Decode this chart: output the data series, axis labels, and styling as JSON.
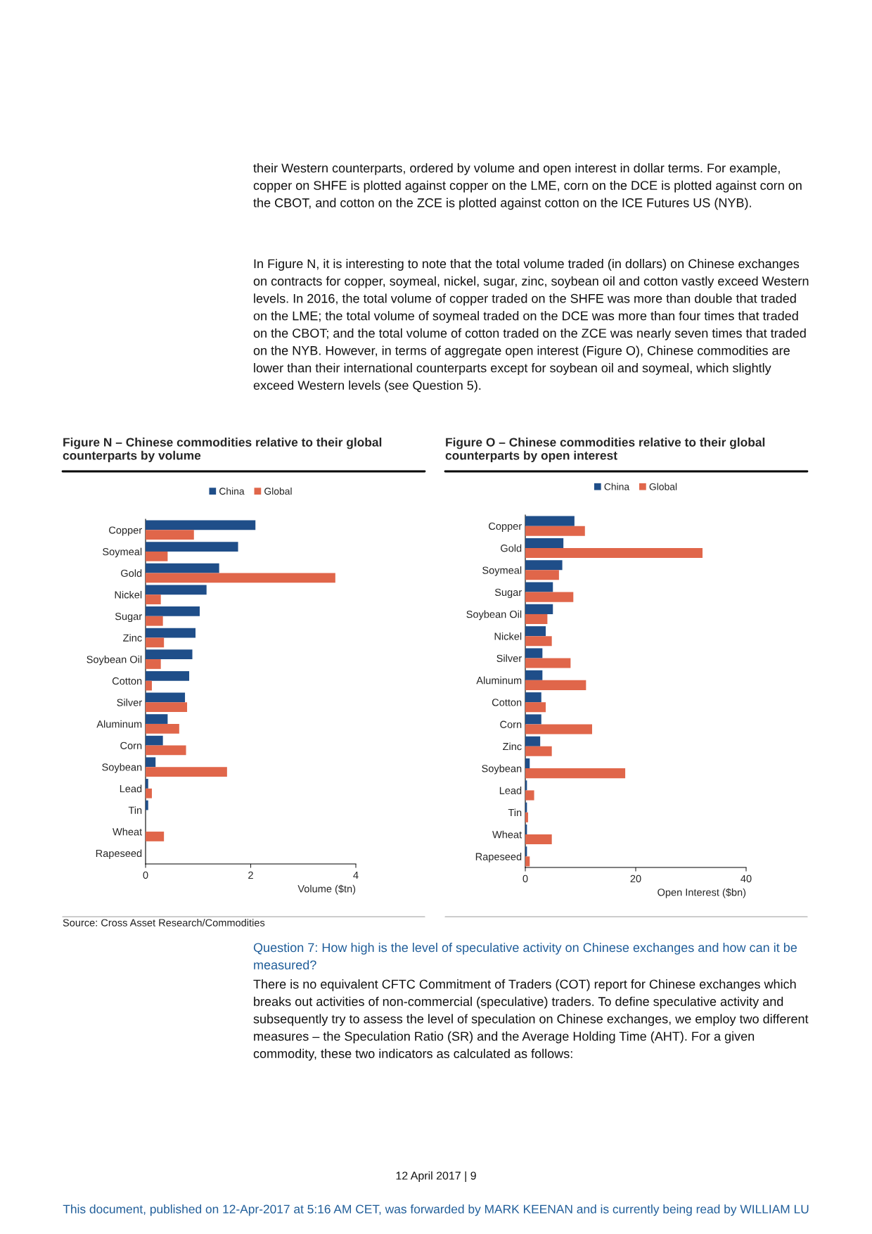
{
  "chart_data": [
    {
      "type": "bar",
      "orientation": "horizontal",
      "title": "Figure N – Chinese commodities relative to their global counterparts by volume",
      "xlabel": "Volume ($tn)",
      "categories": [
        "Copper",
        "Soymeal",
        "Gold",
        "Nickel",
        "Sugar",
        "Zinc",
        "Soybean Oil",
        "Cotton",
        "Silver",
        "Aluminum",
        "Corn",
        "Soybean",
        "Lead",
        "Tin",
        "Wheat",
        "Rapeseed"
      ],
      "series": [
        {
          "name": "China",
          "color": "#1f4e89",
          "values": [
            2.09,
            1.76,
            1.4,
            1.16,
            1.03,
            0.95,
            0.89,
            0.83,
            0.75,
            0.42,
            0.33,
            0.19,
            0.05,
            0.05,
            0,
            0
          ]
        },
        {
          "name": "Global",
          "color": "#e0664a",
          "values": [
            0.92,
            0.42,
            3.61,
            0.29,
            0.33,
            0.35,
            0.29,
            0.12,
            0.79,
            0.64,
            0.77,
            1.55,
            0.12,
            0,
            0.35,
            0
          ]
        }
      ],
      "xlim": [
        0,
        4
      ],
      "xticks": [
        0,
        2,
        4
      ],
      "legend": "top",
      "grid": false,
      "annotations": [
        "their Western counterparts, ordered by volume and open interest in dollar terms. For example, copper on SHFE is plotted against copper on the LME, corn on the DCE is plotted against corn on the CBOT, and cotton on the ZCE is plotted against cotton on the ICE Futures US (NYB).",
        "In Figure N, it is interesting to note that the total volume traded (in dollars) on Chinese exchanges on contracts for copper, soymeal, nickel, sugar, zinc, soybean oil and cotton vastly exceed Western levels. In 2016, the total volume of copper traded on the SHFE was more than double that traded on the LME; the total volume of soymeal traded on the DCE was more than four times that traded on the CBOT; and the total volume of cotton traded on the ZCE was nearly seven times that traded on the NYB. However, in terms of aggregate open interest (Figure O), Chinese commodities are lower than their international counterparts except for soybean oil and soymeal, which slightly exceed Western levels (see Question 5).",
        "Source: Cross Asset Research/Commodities"
      ]
    },
    {
      "type": "bar",
      "orientation": "horizontal",
      "title": "Figure O – Chinese commodities relative to their global counterparts by open interest",
      "xlabel": "Open Interest ($bn)",
      "categories": [
        "Copper",
        "Gold",
        "Soymeal",
        "Sugar",
        "Soybean Oil",
        "Nickel",
        "Silver",
        "Aluminum",
        "Cotton",
        "Corn",
        "Zinc",
        "Soybean",
        "Lead",
        "Tin",
        "Wheat",
        "Rapeseed"
      ],
      "series": [
        {
          "name": "China",
          "color": "#1f4e89",
          "values": [
            8.9,
            6.9,
            6.7,
            5.0,
            5.0,
            3.7,
            3.1,
            3.1,
            2.9,
            2.9,
            2.7,
            0.8,
            0.3,
            0.3,
            0.3,
            0.3
          ]
        },
        {
          "name": "Global",
          "color": "#e0664a",
          "values": [
            10.8,
            32.1,
            6.1,
            8.7,
            4.0,
            4.8,
            8.2,
            11.0,
            3.7,
            12.1,
            4.8,
            18.1,
            1.6,
            0.5,
            4.8,
            0.8
          ]
        }
      ],
      "xlim": [
        0,
        40
      ],
      "xticks": [
        0,
        20,
        40
      ],
      "legend": "top",
      "grid": false,
      "annotations": [
        "Question 7: How high is the level of speculative activity on Chinese exchanges and how can it be measured?",
        "There is no equivalent CFTC Commitment of Traders (COT) report for Chinese exchanges which breaks out activities of non-commercial (speculative) traders. To define speculative activity and subsequently try to assess the level of speculation on Chinese exchanges, we employ two different measures – the Speculation Ratio (SR) and the Average Holding Time (AHT). For a given commodity, these two indicators as calculated as follows:",
        "12 April 2017 | 9",
        "This document, published on 12-Apr-2017 at 5:16 AM CET, was forwarded by MARK KEENAN and is currently being read by WILLIAM LU"
      ]
    }
  ]
}
